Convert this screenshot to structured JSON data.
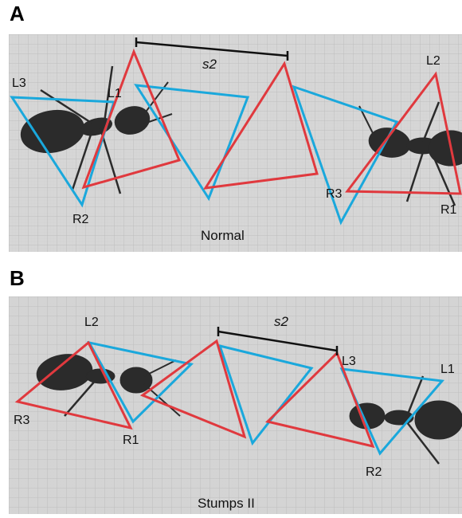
{
  "panels": [
    {
      "letter": "A",
      "caption": "Normal",
      "stride_label": "s2",
      "legs": {
        "L1": "L1",
        "L2": "L2",
        "L3": "L3",
        "R1": "R1",
        "R2": "R2",
        "R3": "R3"
      }
    },
    {
      "letter": "B",
      "caption": "Stumps II",
      "stride_label": "s2",
      "legs": {
        "L1": "L1",
        "L2": "L2",
        "L3": "L3",
        "R1": "R1",
        "R2": "R2",
        "R3": "R3"
      }
    }
  ],
  "colors": {
    "red_tripod": "#e0393e",
    "blue_tripod": "#1aa8dc",
    "scale_bar": "#111111",
    "background_grid": "#c9c9c9",
    "ant_body": "#2a2a2a"
  }
}
